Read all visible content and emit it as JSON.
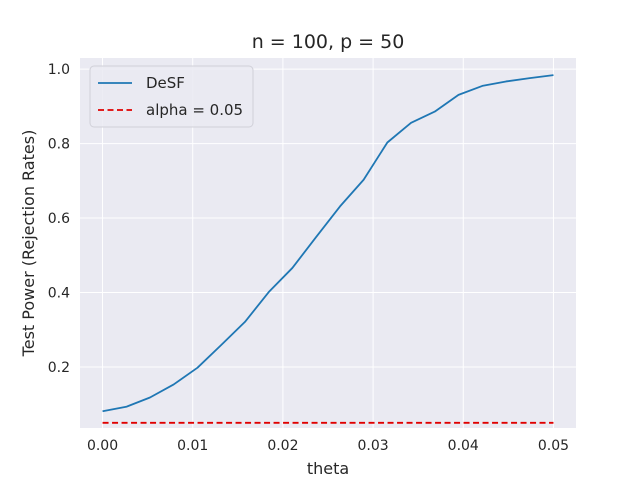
{
  "chart_data": {
    "type": "line",
    "title": "n  = 100, p = 50",
    "xlabel": "theta",
    "ylabel": "Test Power (Rejection Rates)",
    "xlim": [
      -0.0025,
      0.0525
    ],
    "ylim": [
      0.036,
      1.03
    ],
    "xticks": [
      0.0,
      0.01,
      0.02,
      0.03,
      0.04,
      0.05
    ],
    "xtick_labels": [
      "0.00",
      "0.01",
      "0.02",
      "0.03",
      "0.04",
      "0.05"
    ],
    "yticks": [
      0.2,
      0.4,
      0.6,
      0.8,
      1.0
    ],
    "ytick_labels": [
      "0.2",
      "0.4",
      "0.6",
      "0.8",
      "1.0"
    ],
    "grid": true,
    "legend_position": "top-left",
    "background_color": "#eaeaf2",
    "grid_color": "#ffffff",
    "series": [
      {
        "name": "DeSF",
        "color": "#1f77b4",
        "style": "solid",
        "x": [
          0.0,
          0.00263,
          0.00526,
          0.00789,
          0.01053,
          0.01316,
          0.01579,
          0.01842,
          0.02105,
          0.02368,
          0.02632,
          0.02895,
          0.03158,
          0.03421,
          0.03684,
          0.03947,
          0.04211,
          0.04474,
          0.04737,
          0.05
        ],
        "y": [
          0.081,
          0.093,
          0.118,
          0.153,
          0.198,
          0.259,
          0.321,
          0.401,
          0.466,
          0.549,
          0.631,
          0.703,
          0.803,
          0.856,
          0.886,
          0.931,
          0.955,
          0.967,
          0.976,
          0.984
        ]
      },
      {
        "name": "alpha = 0.05",
        "color": "#e00000",
        "style": "dashed",
        "x": [
          0.0,
          0.05
        ],
        "y": [
          0.05,
          0.05
        ]
      }
    ]
  }
}
